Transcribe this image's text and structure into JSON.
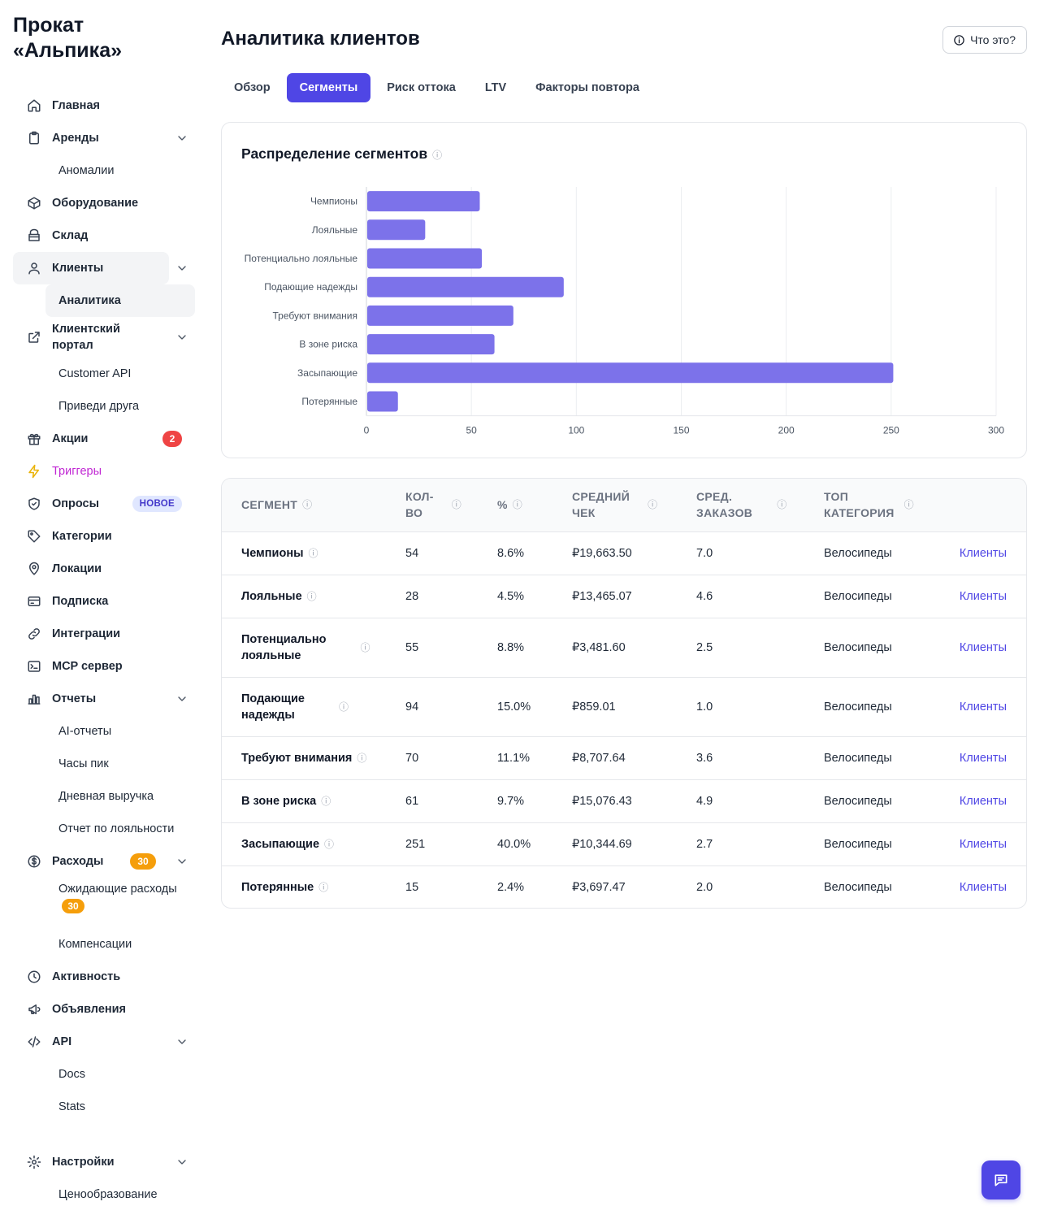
{
  "brand": {
    "line1": "Прокат",
    "line2": "«Альпика»"
  },
  "sidebar": {
    "home": "Главная",
    "rentals": "Аренды",
    "anomalies": "Аномалии",
    "equipment": "Оборудование",
    "warehouse": "Склад",
    "clients": "Клиенты",
    "analytics": "Аналитика",
    "portal_line1": "Клиентский",
    "portal_line2": "портал",
    "customer_api": "Customer API",
    "referral": "Приведи друга",
    "promos": "Акции",
    "promos_badge": "2",
    "triggers": "Триггеры",
    "surveys": "Опросы",
    "surveys_badge": "НОВОЕ",
    "categories": "Категории",
    "locations": "Локации",
    "subscription": "Подписка",
    "integrations": "Интеграции",
    "mcp": "MCP сервер",
    "reports": "Отчеты",
    "ai_reports": "AI-отчеты",
    "peak_hours": "Часы пик",
    "daily_revenue": "Дневная выручка",
    "loyalty_report": "Отчет по лояльности",
    "expenses": "Расходы",
    "expenses_badge": "30",
    "pending_expenses": "Ожидающие расходы",
    "pending_badge": "30",
    "compensations": "Компенсации",
    "activity": "Активность",
    "announcements": "Объявления",
    "api": "API",
    "docs": "Docs",
    "stats": "Stats",
    "settings": "Настройки",
    "pricing": "Ценообразование"
  },
  "header": {
    "title": "Аналитика клиентов",
    "help": "Что это?"
  },
  "tabs": [
    "Обзор",
    "Сегменты",
    "Риск оттока",
    "LTV",
    "Факторы повтора"
  ],
  "active_tab": "Сегменты",
  "chart_title": "Распределение сегментов",
  "info_glyph": "ⓘ",
  "chart_data": {
    "type": "bar",
    "orientation": "horizontal",
    "categories": [
      "Чемпионы",
      "Лояльные",
      "Потенциально лояльные",
      "Подающие надежды",
      "Требуют внимания",
      "В зоне риска",
      "Засыпающие",
      "Потерянные"
    ],
    "values": [
      54,
      28,
      55,
      94,
      70,
      61,
      251,
      15
    ],
    "xlim": [
      0,
      300
    ],
    "xticks": [
      0,
      50,
      100,
      150,
      200,
      250,
      300
    ],
    "color": "#7c72ea",
    "grid": "vertical"
  },
  "table": {
    "headers": {
      "segment": "СЕГМЕНТ",
      "count_l1": "КОЛ-",
      "count_l2": "ВО",
      "pct": "%",
      "avg_l1": "СРЕДНИЙ",
      "avg_l2": "ЧЕК",
      "orders_l1": "СРЕД.",
      "orders_l2": "ЗАКАЗОВ",
      "cat_l1": "ТОП",
      "cat_l2": "КАТЕГОРИЯ"
    },
    "rows": [
      {
        "l1": "Чемпионы",
        "l2": "",
        "count": "54",
        "pct": "8.6%",
        "avg": "₽19,663.50",
        "orders": "7.0",
        "cat": "Велосипеды",
        "link": "Клиенты"
      },
      {
        "l1": "Лояльные",
        "l2": "",
        "count": "28",
        "pct": "4.5%",
        "avg": "₽13,465.07",
        "orders": "4.6",
        "cat": "Велосипеды",
        "link": "Клиенты"
      },
      {
        "l1": "Потенциально",
        "l2": "лояльные",
        "count": "55",
        "pct": "8.8%",
        "avg": "₽3,481.60",
        "orders": "2.5",
        "cat": "Велосипеды",
        "link": "Клиенты"
      },
      {
        "l1": "Подающие",
        "l2": "надежды",
        "count": "94",
        "pct": "15.0%",
        "avg": "₽859.01",
        "orders": "1.0",
        "cat": "Велосипеды",
        "link": "Клиенты"
      },
      {
        "l1": "Требуют внимания",
        "l2": "",
        "count": "70",
        "pct": "11.1%",
        "avg": "₽8,707.64",
        "orders": "3.6",
        "cat": "Велосипеды",
        "link": "Клиенты"
      },
      {
        "l1": "В зоне риска",
        "l2": "",
        "count": "61",
        "pct": "9.7%",
        "avg": "₽15,076.43",
        "orders": "4.9",
        "cat": "Велосипеды",
        "link": "Клиенты"
      },
      {
        "l1": "Засыпающие",
        "l2": "",
        "count": "251",
        "pct": "40.0%",
        "avg": "₽10,344.69",
        "orders": "2.7",
        "cat": "Велосипеды",
        "link": "Клиенты"
      },
      {
        "l1": "Потерянные",
        "l2": "",
        "count": "15",
        "pct": "2.4%",
        "avg": "₽3,697.47",
        "orders": "2.0",
        "cat": "Велосипеды",
        "link": "Клиенты"
      }
    ]
  },
  "colors": {
    "accent": "#4f46e5",
    "bar": "#7c72ea",
    "badge_red": "#ef4444",
    "badge_orange": "#f59e0b",
    "trigger": "#c026d3"
  }
}
